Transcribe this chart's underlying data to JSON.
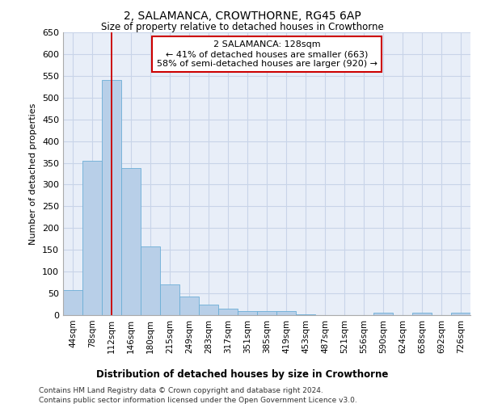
{
  "title": "2, SALAMANCA, CROWTHORNE, RG45 6AP",
  "subtitle": "Size of property relative to detached houses in Crowthorne",
  "xlabel": "Distribution of detached houses by size in Crowthorne",
  "ylabel": "Number of detached properties",
  "categories": [
    "44sqm",
    "78sqm",
    "112sqm",
    "146sqm",
    "180sqm",
    "215sqm",
    "249sqm",
    "283sqm",
    "317sqm",
    "351sqm",
    "385sqm",
    "419sqm",
    "453sqm",
    "487sqm",
    "521sqm",
    "556sqm",
    "590sqm",
    "624sqm",
    "658sqm",
    "692sqm",
    "726sqm"
  ],
  "values": [
    58,
    355,
    540,
    338,
    157,
    70,
    42,
    25,
    15,
    10,
    9,
    10,
    2,
    0,
    0,
    0,
    5,
    0,
    5,
    0,
    5
  ],
  "bar_color": "#b8cfe8",
  "bar_edge_color": "#6baed6",
  "grid_color": "#c8d4e8",
  "bg_color": "#e8eef8",
  "vline_x": 2,
  "vline_color": "#cc0000",
  "annotation_text": "2 SALAMANCA: 128sqm\n← 41% of detached houses are smaller (663)\n58% of semi-detached houses are larger (920) →",
  "annotation_box_color": "#cc0000",
  "ylim": [
    0,
    650
  ],
  "yticks": [
    0,
    50,
    100,
    150,
    200,
    250,
    300,
    350,
    400,
    450,
    500,
    550,
    600,
    650
  ],
  "footer_line1": "Contains HM Land Registry data © Crown copyright and database right 2024.",
  "footer_line2": "Contains public sector information licensed under the Open Government Licence v3.0.",
  "title_fontsize": 10,
  "subtitle_fontsize": 8.5,
  "xlabel_fontsize": 8.5,
  "ylabel_fontsize": 8,
  "footer_fontsize": 6.5
}
